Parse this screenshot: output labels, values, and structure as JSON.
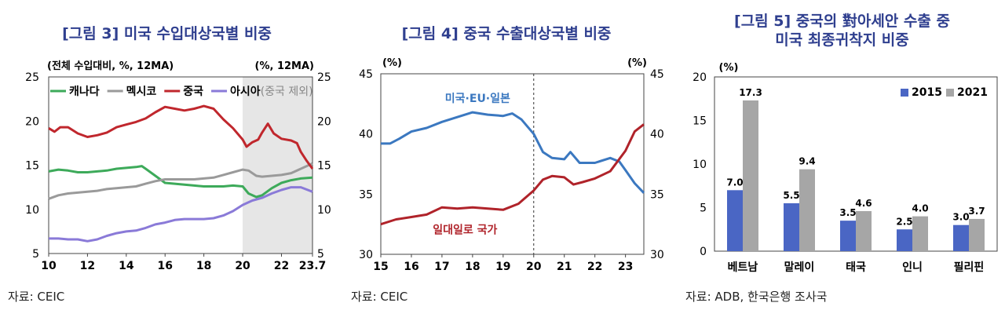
{
  "figures": [
    {
      "title": "[그림 3] 미국 수입대상국별 비중",
      "source": "자료: CEIC"
    },
    {
      "title": "[그림 4] 중국 수출대상국별 비중",
      "source": "자료: CEIC"
    },
    {
      "title_line1": "[그림 5] 중국의 對아세안 수출 중",
      "title_line2": "미국 최종귀착지 비중",
      "source": "자료: ADB, 한국은행 조사국"
    }
  ],
  "chart_data": [
    {
      "type": "line",
      "left_unit": "(전체 수입대비, %, 12MA)",
      "right_unit": "(%, 12MA)",
      "ylim": [
        5,
        25
      ],
      "yticks": [
        5,
        10,
        15,
        20,
        25
      ],
      "xlim": [
        2010,
        2023.6
      ],
      "xtick_values": [
        2010,
        2012,
        2014,
        2016,
        2018,
        2020,
        2022,
        2023.6
      ],
      "xtick_labels": [
        "10",
        "12",
        "14",
        "16",
        "18",
        "20",
        "22",
        "23.7"
      ],
      "shaded_from": 2020,
      "legend_placement": "top-left",
      "legend_suffix": "(중국 제외)",
      "series": [
        {
          "name": "캐나다",
          "color": "#3daa5a",
          "points": [
            [
              2010,
              14.3
            ],
            [
              2010.5,
              14.5
            ],
            [
              2011,
              14.4
            ],
            [
              2011.5,
              14.2
            ],
            [
              2012,
              14.2
            ],
            [
              2012.5,
              14.3
            ],
            [
              2013,
              14.4
            ],
            [
              2013.5,
              14.6
            ],
            [
              2014,
              14.7
            ],
            [
              2014.5,
              14.8
            ],
            [
              2014.8,
              14.9
            ],
            [
              2015,
              14.6
            ],
            [
              2015.5,
              13.8
            ],
            [
              2016,
              13.0
            ],
            [
              2016.5,
              12.9
            ],
            [
              2017,
              12.8
            ],
            [
              2017.5,
              12.7
            ],
            [
              2018,
              12.6
            ],
            [
              2018.5,
              12.6
            ],
            [
              2019,
              12.6
            ],
            [
              2019.5,
              12.7
            ],
            [
              2020,
              12.6
            ],
            [
              2020.3,
              11.8
            ],
            [
              2020.7,
              11.4
            ],
            [
              2021,
              11.6
            ],
            [
              2021.5,
              12.4
            ],
            [
              2022,
              13.0
            ],
            [
              2022.5,
              13.3
            ],
            [
              2023,
              13.5
            ],
            [
              2023.6,
              13.6
            ]
          ]
        },
        {
          "name": "멕시코",
          "color": "#9a9a9a",
          "points": [
            [
              2010,
              11.2
            ],
            [
              2010.5,
              11.6
            ],
            [
              2011,
              11.8
            ],
            [
              2011.5,
              11.9
            ],
            [
              2012,
              12.0
            ],
            [
              2012.5,
              12.1
            ],
            [
              2013,
              12.3
            ],
            [
              2013.5,
              12.4
            ],
            [
              2014,
              12.5
            ],
            [
              2014.5,
              12.6
            ],
            [
              2015,
              12.9
            ],
            [
              2015.5,
              13.2
            ],
            [
              2016,
              13.4
            ],
            [
              2016.5,
              13.4
            ],
            [
              2017,
              13.4
            ],
            [
              2017.5,
              13.4
            ],
            [
              2018,
              13.5
            ],
            [
              2018.5,
              13.6
            ],
            [
              2019,
              13.9
            ],
            [
              2019.5,
              14.2
            ],
            [
              2020,
              14.5
            ],
            [
              2020.3,
              14.4
            ],
            [
              2020.7,
              13.8
            ],
            [
              2021,
              13.7
            ],
            [
              2021.5,
              13.8
            ],
            [
              2022,
              13.9
            ],
            [
              2022.5,
              14.1
            ],
            [
              2023,
              14.6
            ],
            [
              2023.6,
              15.2
            ]
          ]
        },
        {
          "name": "중국",
          "color": "#c0272d",
          "points": [
            [
              2010,
              19.2
            ],
            [
              2010.3,
              18.8
            ],
            [
              2010.6,
              19.3
            ],
            [
              2011,
              19.3
            ],
            [
              2011.5,
              18.6
            ],
            [
              2012,
              18.2
            ],
            [
              2012.5,
              18.4
            ],
            [
              2013,
              18.7
            ],
            [
              2013.5,
              19.3
            ],
            [
              2014,
              19.6
            ],
            [
              2014.5,
              19.9
            ],
            [
              2015,
              20.3
            ],
            [
              2015.5,
              21.0
            ],
            [
              2016,
              21.6
            ],
            [
              2016.5,
              21.4
            ],
            [
              2017,
              21.2
            ],
            [
              2017.5,
              21.4
            ],
            [
              2018,
              21.7
            ],
            [
              2018.5,
              21.4
            ],
            [
              2019,
              20.2
            ],
            [
              2019.5,
              19.2
            ],
            [
              2020,
              17.9
            ],
            [
              2020.2,
              17.1
            ],
            [
              2020.5,
              17.6
            ],
            [
              2020.8,
              17.9
            ],
            [
              2021,
              18.7
            ],
            [
              2021.3,
              19.7
            ],
            [
              2021.6,
              18.6
            ],
            [
              2022,
              18.0
            ],
            [
              2022.5,
              17.8
            ],
            [
              2022.8,
              17.5
            ],
            [
              2023,
              16.5
            ],
            [
              2023.3,
              15.5
            ],
            [
              2023.6,
              14.6
            ]
          ]
        },
        {
          "name": "아시아",
          "color": "#8a7ad8",
          "points": [
            [
              2010,
              6.7
            ],
            [
              2010.5,
              6.7
            ],
            [
              2011,
              6.6
            ],
            [
              2011.5,
              6.6
            ],
            [
              2012,
              6.4
            ],
            [
              2012.5,
              6.6
            ],
            [
              2013,
              7.0
            ],
            [
              2013.5,
              7.3
            ],
            [
              2014,
              7.5
            ],
            [
              2014.5,
              7.6
            ],
            [
              2015,
              7.9
            ],
            [
              2015.5,
              8.3
            ],
            [
              2016,
              8.5
            ],
            [
              2016.5,
              8.8
            ],
            [
              2017,
              8.9
            ],
            [
              2017.5,
              8.9
            ],
            [
              2018,
              8.9
            ],
            [
              2018.5,
              9.0
            ],
            [
              2019,
              9.3
            ],
            [
              2019.5,
              9.8
            ],
            [
              2020,
              10.5
            ],
            [
              2020.5,
              11.0
            ],
            [
              2021,
              11.3
            ],
            [
              2021.5,
              11.8
            ],
            [
              2022,
              12.2
            ],
            [
              2022.5,
              12.5
            ],
            [
              2023,
              12.5
            ],
            [
              2023.6,
              12.0
            ]
          ]
        }
      ]
    },
    {
      "type": "line",
      "left_unit": "(%)",
      "right_unit": "(%)",
      "ylim": [
        30,
        45
      ],
      "yticks": [
        30,
        35,
        40,
        45
      ],
      "xlim": [
        2015,
        2023.6
      ],
      "xtick_values": [
        2015,
        2016,
        2017,
        2018,
        2019,
        2020,
        2021,
        2022,
        2023
      ],
      "xtick_labels": [
        "15",
        "16",
        "17",
        "18",
        "19",
        "20",
        "21",
        "22",
        "23"
      ],
      "vline": 2020,
      "series": [
        {
          "name": "미국·EU·일본",
          "color": "#3b78c0",
          "points": [
            [
              2015,
              39.2
            ],
            [
              2015.3,
              39.2
            ],
            [
              2015.6,
              39.6
            ],
            [
              2016,
              40.2
            ],
            [
              2016.5,
              40.5
            ],
            [
              2017,
              41.0
            ],
            [
              2017.5,
              41.4
            ],
            [
              2018,
              41.8
            ],
            [
              2018.5,
              41.6
            ],
            [
              2019,
              41.5
            ],
            [
              2019.3,
              41.7
            ],
            [
              2019.6,
              41.2
            ],
            [
              2020,
              40.0
            ],
            [
              2020.3,
              38.5
            ],
            [
              2020.6,
              38.0
            ],
            [
              2021,
              37.9
            ],
            [
              2021.2,
              38.5
            ],
            [
              2021.5,
              37.6
            ],
            [
              2022,
              37.6
            ],
            [
              2022.5,
              38.0
            ],
            [
              2022.8,
              37.7
            ],
            [
              2023,
              37.0
            ],
            [
              2023.3,
              35.9
            ],
            [
              2023.6,
              35.1
            ]
          ]
        },
        {
          "name": "일대일로 국가",
          "color": "#b0232a",
          "points": [
            [
              2015,
              32.5
            ],
            [
              2015.5,
              32.9
            ],
            [
              2016,
              33.1
            ],
            [
              2016.5,
              33.3
            ],
            [
              2017,
              33.9
            ],
            [
              2017.5,
              33.8
            ],
            [
              2018,
              33.9
            ],
            [
              2018.5,
              33.8
            ],
            [
              2019,
              33.7
            ],
            [
              2019.5,
              34.2
            ],
            [
              2020,
              35.3
            ],
            [
              2020.3,
              36.2
            ],
            [
              2020.6,
              36.5
            ],
            [
              2021,
              36.4
            ],
            [
              2021.3,
              35.8
            ],
            [
              2021.6,
              36.0
            ],
            [
              2022,
              36.3
            ],
            [
              2022.5,
              36.9
            ],
            [
              2023,
              38.6
            ],
            [
              2023.3,
              40.2
            ],
            [
              2023.6,
              40.8
            ]
          ]
        }
      ]
    },
    {
      "type": "bar",
      "unit": "(%)",
      "ylim": [
        0,
        20
      ],
      "yticks": [
        0,
        5,
        10,
        15,
        20
      ],
      "categories": [
        "베트남",
        "말레이",
        "태국",
        "인니",
        "필리핀"
      ],
      "legend_placement": "top-right",
      "series": [
        {
          "name": "2015",
          "color": "#4a66c4",
          "values": [
            7.0,
            5.5,
            3.5,
            2.5,
            3.0
          ],
          "labels": [
            "7.0",
            "5.5",
            "3.5",
            "2.5",
            "3.0"
          ]
        },
        {
          "name": "2021",
          "color": "#a6a6a6",
          "values": [
            17.3,
            9.4,
            4.6,
            4.0,
            3.7
          ],
          "labels": [
            "17.3",
            "9.4",
            "4.6",
            "4.0",
            "3.7"
          ]
        }
      ]
    }
  ]
}
